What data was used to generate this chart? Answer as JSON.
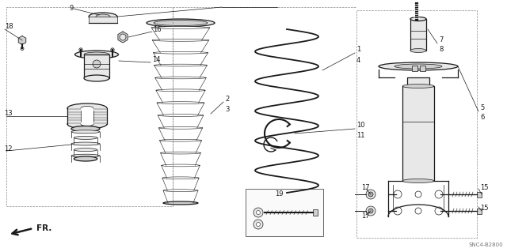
{
  "bg_color": "#ffffff",
  "line_color": "#1a1a1a",
  "gray1": "#e8e8e8",
  "gray2": "#d0d0d0",
  "gray3": "#b0b0b0",
  "fig_width": 6.4,
  "fig_height": 3.19,
  "dpi": 100,
  "watermark": "SNC4-B2800",
  "label_fs": 6.0,
  "lw_main": 0.9,
  "lw_thin": 0.5,
  "lw_leader": 0.5
}
